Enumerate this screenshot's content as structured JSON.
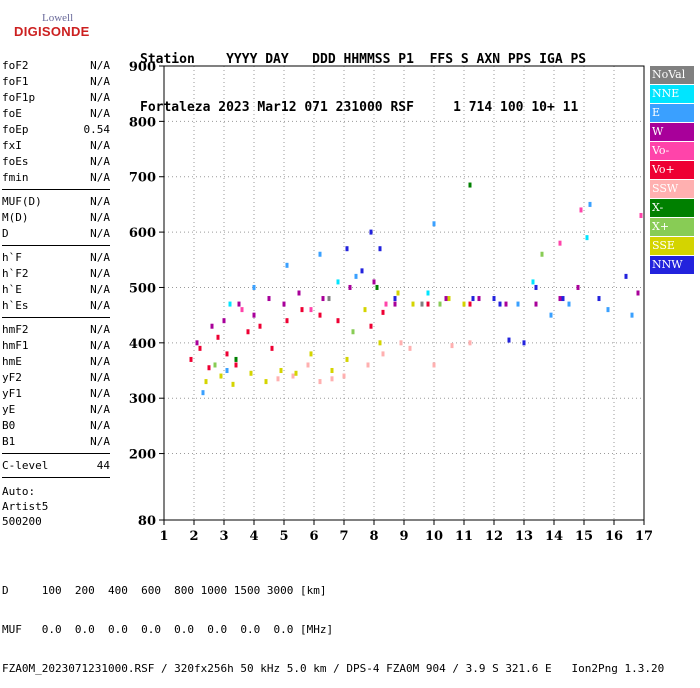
{
  "logo": {
    "line1": "Lowell",
    "line2": "DIGISONDE"
  },
  "header": {
    "labels": "Station    YYYY DAY   DDD HHMMSS P1  FFS S AXN PPS IGA PS",
    "values": "Fortaleza 2023 Mar12 071 231000 RSF     1 714 100 10+ 11"
  },
  "params_group1": [
    {
      "name": "foF2",
      "value": "N/A"
    },
    {
      "name": "foF1",
      "value": "N/A"
    },
    {
      "name": "foF1p",
      "value": "N/A"
    },
    {
      "name": "foE",
      "value": "N/A"
    },
    {
      "name": "foEp",
      "value": "0.54"
    },
    {
      "name": "fxI",
      "value": "N/A"
    },
    {
      "name": "foEs",
      "value": "N/A"
    },
    {
      "name": "fmin",
      "value": "N/A"
    }
  ],
  "params_group2": [
    {
      "name": "MUF(D)",
      "value": "N/A"
    },
    {
      "name": "M(D)",
      "value": "N/A"
    },
    {
      "name": "D",
      "value": "N/A"
    }
  ],
  "params_group3": [
    {
      "name": "h`F",
      "value": "N/A"
    },
    {
      "name": "h`F2",
      "value": "N/A"
    },
    {
      "name": "h`E",
      "value": "N/A"
    },
    {
      "name": "h`Es",
      "value": "N/A"
    }
  ],
  "params_group4": [
    {
      "name": "hmF2",
      "value": "N/A"
    },
    {
      "name": "hmF1",
      "value": "N/A"
    },
    {
      "name": "hmE",
      "value": "N/A"
    },
    {
      "name": "yF2",
      "value": "N/A"
    },
    {
      "name": "yF1",
      "value": "N/A"
    },
    {
      "name": "yE",
      "value": "N/A"
    },
    {
      "name": "B0",
      "value": "N/A"
    },
    {
      "name": "B1",
      "value": "N/A"
    }
  ],
  "params_group5": [
    {
      "name": "C-level",
      "value": "44"
    }
  ],
  "auto": {
    "line1": "Auto:",
    "line2": "Artist5",
    "line3": "500200"
  },
  "legend": [
    {
      "label": "NoVal",
      "color": "#808080"
    },
    {
      "label": "NNE",
      "color": "#00e5ff"
    },
    {
      "label": "E",
      "color": "#3aa0ff"
    },
    {
      "label": "W",
      "color": "#a8009a"
    },
    {
      "label": "Vo-",
      "color": "#ff44aa"
    },
    {
      "label": "Vo+",
      "color": "#ee0033"
    },
    {
      "label": "SSW",
      "color": "#ffb0b0"
    },
    {
      "label": "X-",
      "color": "#008000"
    },
    {
      "label": "X+",
      "color": "#88cc55"
    },
    {
      "label": "SSE",
      "color": "#d4d400"
    },
    {
      "label": "NNW",
      "color": "#2222dd"
    }
  ],
  "bottom": {
    "line1": "D     100  200  400  600  800 1000 1500 3000 [km]",
    "line2": "MUF   0.0  0.0  0.0  0.0  0.0  0.0  0.0  0.0 [MHz]",
    "line3": "FZA0M_2023071231000.RSF / 320fx256h 50 kHz 5.0 km / DPS-4 FZA0M 904 / 3.9 S 321.6 E   Ion2Png 1.3.20"
  },
  "chart_data": {
    "type": "scatter",
    "xlim": [
      1,
      17
    ],
    "ylim": [
      80,
      900
    ],
    "x_ticks": [
      1,
      2,
      3,
      4,
      5,
      6,
      7,
      8,
      9,
      10,
      11,
      12,
      13,
      14,
      15,
      16,
      17
    ],
    "y_ticks": [
      80,
      200,
      300,
      400,
      500,
      600,
      700,
      800,
      900
    ],
    "grid": true,
    "series": [
      {
        "name": "Vo+",
        "color": "#ee0033",
        "points": [
          [
            1.9,
            370
          ],
          [
            2.2,
            390
          ],
          [
            2.5,
            355
          ],
          [
            2.8,
            410
          ],
          [
            3.1,
            380
          ],
          [
            3.4,
            360
          ],
          [
            3.8,
            420
          ],
          [
            4.2,
            430
          ],
          [
            4.6,
            390
          ],
          [
            5.1,
            440
          ],
          [
            5.6,
            460
          ],
          [
            6.2,
            450
          ],
          [
            6.8,
            440
          ],
          [
            7.9,
            430
          ],
          [
            8.3,
            455
          ],
          [
            9.8,
            470
          ],
          [
            11.2,
            470
          ]
        ]
      },
      {
        "name": "W",
        "color": "#a8009a",
        "points": [
          [
            2.1,
            400
          ],
          [
            2.6,
            430
          ],
          [
            3.0,
            440
          ],
          [
            3.5,
            470
          ],
          [
            4.0,
            450
          ],
          [
            4.5,
            480
          ],
          [
            5.0,
            470
          ],
          [
            5.5,
            490
          ],
          [
            6.3,
            480
          ],
          [
            7.2,
            500
          ],
          [
            8.0,
            510
          ],
          [
            8.7,
            470
          ],
          [
            10.4,
            480
          ],
          [
            11.5,
            480
          ],
          [
            12.4,
            470
          ],
          [
            13.4,
            470
          ],
          [
            14.2,
            480
          ],
          [
            14.8,
            500
          ],
          [
            16.8,
            490
          ]
        ]
      },
      {
        "name": "SSE",
        "color": "#d4d400",
        "points": [
          [
            2.4,
            330
          ],
          [
            2.9,
            340
          ],
          [
            3.3,
            325
          ],
          [
            3.9,
            345
          ],
          [
            4.4,
            330
          ],
          [
            4.9,
            350
          ],
          [
            5.4,
            345
          ],
          [
            5.9,
            380
          ],
          [
            6.6,
            350
          ],
          [
            7.1,
            370
          ],
          [
            7.7,
            460
          ],
          [
            8.2,
            400
          ],
          [
            8.8,
            490
          ],
          [
            9.3,
            470
          ],
          [
            10.5,
            480
          ],
          [
            11.0,
            470
          ]
        ]
      },
      {
        "name": "SSW",
        "color": "#ffb0b0",
        "points": [
          [
            4.8,
            335
          ],
          [
            5.3,
            340
          ],
          [
            5.8,
            360
          ],
          [
            6.2,
            330
          ],
          [
            6.6,
            335
          ],
          [
            7.0,
            340
          ],
          [
            7.8,
            360
          ],
          [
            8.3,
            380
          ],
          [
            8.9,
            400
          ],
          [
            9.2,
            390
          ],
          [
            10.0,
            360
          ],
          [
            10.6,
            395
          ],
          [
            11.2,
            400
          ]
        ]
      },
      {
        "name": "NNW",
        "color": "#2222dd",
        "points": [
          [
            7.1,
            570
          ],
          [
            7.6,
            530
          ],
          [
            7.9,
            600
          ],
          [
            8.2,
            570
          ],
          [
            8.7,
            480
          ],
          [
            11.3,
            480
          ],
          [
            12.0,
            480
          ],
          [
            12.2,
            470
          ],
          [
            12.5,
            405
          ],
          [
            13.0,
            400
          ],
          [
            13.4,
            500
          ],
          [
            14.3,
            480
          ],
          [
            15.5,
            480
          ],
          [
            16.4,
            520
          ]
        ]
      },
      {
        "name": "E",
        "color": "#3aa0ff",
        "points": [
          [
            2.3,
            310
          ],
          [
            3.1,
            350
          ],
          [
            4.0,
            500
          ],
          [
            5.1,
            540
          ],
          [
            6.2,
            560
          ],
          [
            7.4,
            520
          ],
          [
            10.0,
            615
          ],
          [
            12.8,
            470
          ],
          [
            13.9,
            450
          ],
          [
            14.5,
            470
          ],
          [
            15.2,
            650
          ],
          [
            15.8,
            460
          ],
          [
            16.6,
            450
          ]
        ]
      },
      {
        "name": "NNE",
        "color": "#00e5ff",
        "points": [
          [
            3.2,
            470
          ],
          [
            6.8,
            510
          ],
          [
            9.8,
            490
          ],
          [
            13.3,
            510
          ],
          [
            15.1,
            590
          ]
        ]
      },
      {
        "name": "Vo-",
        "color": "#ff44aa",
        "points": [
          [
            3.6,
            460
          ],
          [
            5.9,
            460
          ],
          [
            8.4,
            470
          ],
          [
            14.2,
            580
          ],
          [
            14.9,
            640
          ],
          [
            16.9,
            630
          ]
        ]
      },
      {
        "name": "X-",
        "color": "#008000",
        "points": [
          [
            3.4,
            370
          ],
          [
            8.1,
            500
          ],
          [
            11.2,
            685
          ]
        ]
      },
      {
        "name": "X+",
        "color": "#88cc55",
        "points": [
          [
            2.7,
            360
          ],
          [
            7.3,
            420
          ],
          [
            10.2,
            470
          ],
          [
            13.6,
            560
          ]
        ]
      },
      {
        "name": "NoVal",
        "color": "#808080",
        "points": [
          [
            6.5,
            480
          ],
          [
            9.6,
            470
          ]
        ]
      }
    ]
  }
}
